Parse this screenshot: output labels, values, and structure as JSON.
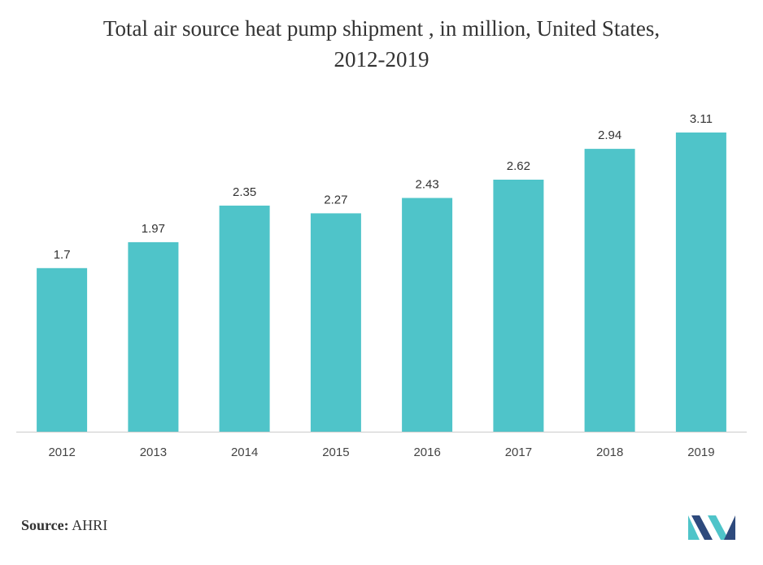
{
  "title_line1": "Total air source heat pump shipment , in million, United States,",
  "title_line2": "2012-2019",
  "source_label": "Source:",
  "source_value": "AHRI",
  "colors": {
    "bar": "#4fc4c9",
    "axis": "#cccccc",
    "logo_dark": "#2e4a7d",
    "logo_light": "#4fc4c9"
  },
  "logo_icon": "mordor-intelligence-logo-icon",
  "chart_data": {
    "type": "bar",
    "title": "Total air source heat pump shipment , in million, United States, 2012-2019",
    "categories": [
      "2012",
      "2013",
      "2014",
      "2015",
      "2016",
      "2017",
      "2018",
      "2019"
    ],
    "values": [
      1.7,
      1.97,
      2.35,
      2.27,
      2.43,
      2.62,
      2.94,
      3.11
    ],
    "data_labels": [
      "1.7",
      "1.97",
      "2.35",
      "2.27",
      "2.43",
      "2.62",
      "2.94",
      "3.11"
    ],
    "xlabel": "",
    "ylabel": "",
    "ylim": [
      0,
      3.11
    ],
    "grid": false,
    "legend": "none"
  }
}
